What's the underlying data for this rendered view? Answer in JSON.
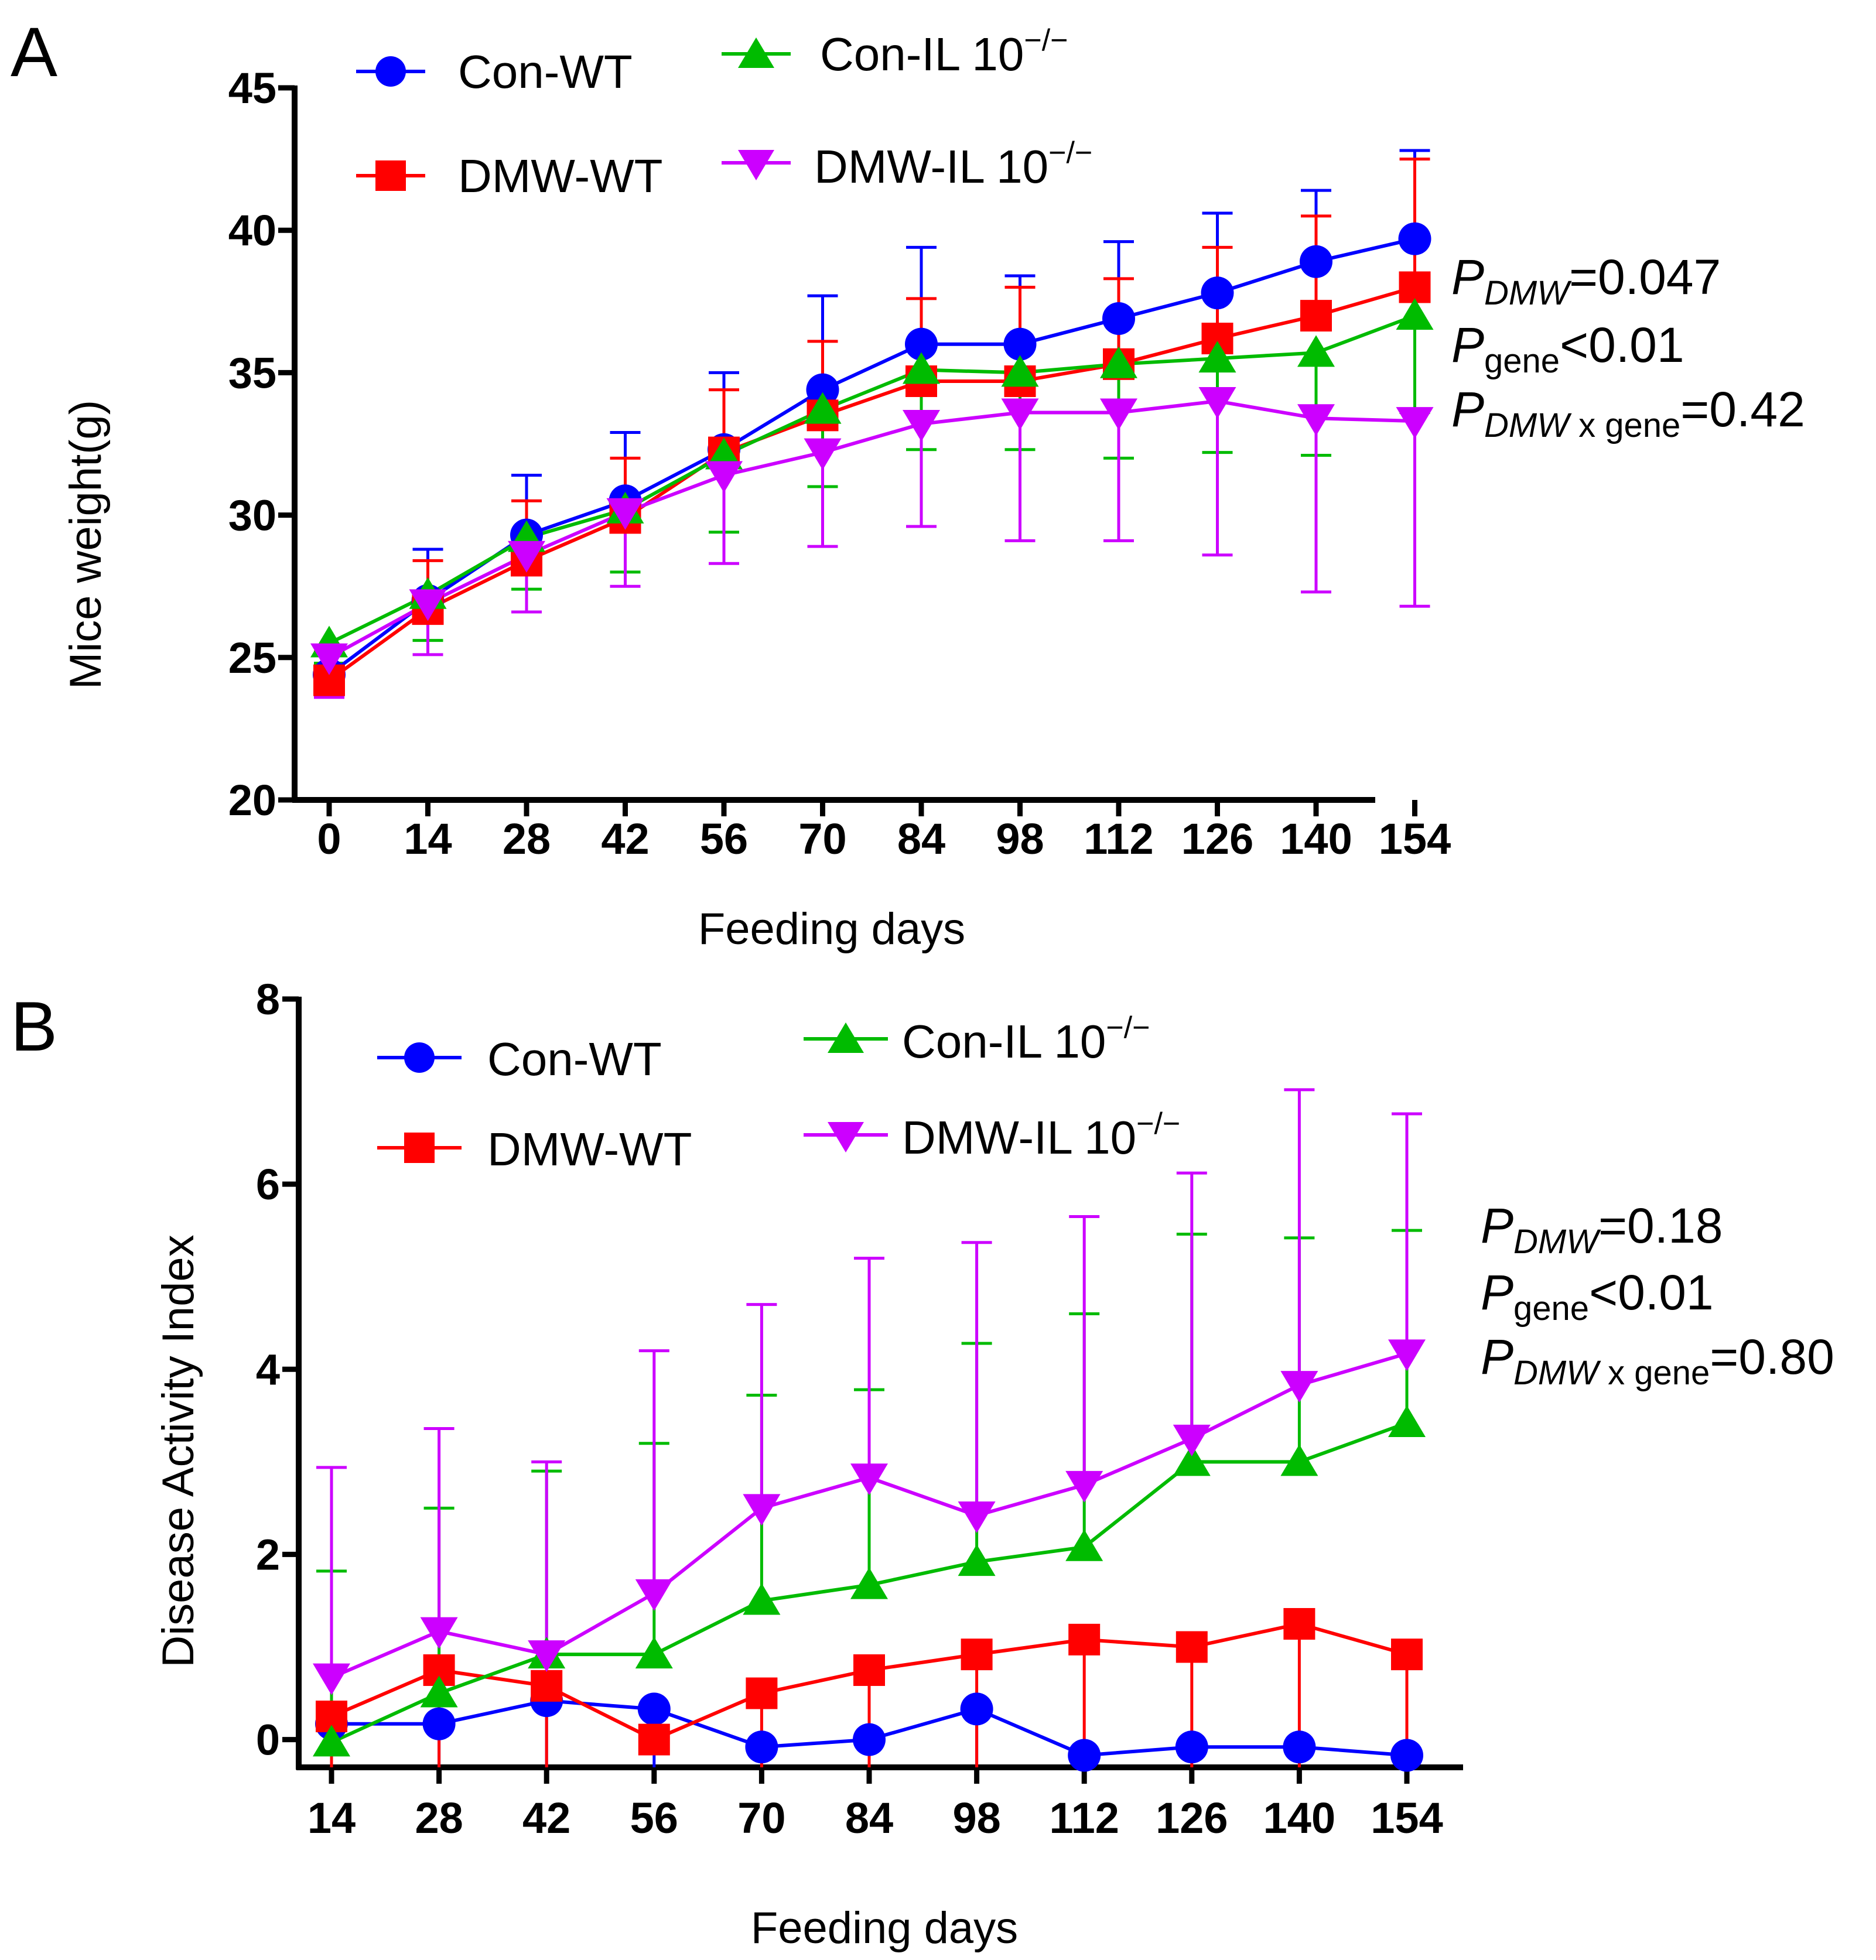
{
  "chart_data": [
    {
      "panel": "A",
      "type": "line",
      "xlabel": "Feeding days",
      "ylabel": "Mice weight(g)",
      "ylim": [
        20,
        45
      ],
      "yticks": [
        "20",
        "25",
        "30",
        "35",
        "40",
        "45"
      ],
      "categories": [
        "0",
        "14",
        "28",
        "42",
        "56",
        "70",
        "84",
        "98",
        "112",
        "126",
        "140",
        "154"
      ],
      "legend": {
        "con_wt": "Con-WT",
        "dmw_wt": "DMW-WT",
        "con_il": "Con-IL 10",
        "dmw_il": "DMW-IL 10",
        "superscript": "−/−"
      },
      "series": [
        {
          "name": "Con-WT",
          "color": "#0000ff",
          "marker": "circle",
          "values": [
            24.4,
            27.0,
            29.3,
            30.5,
            32.3,
            34.4,
            36.0,
            36.0,
            36.9,
            37.8,
            38.9,
            39.7
          ],
          "err_high": [
            25.4,
            28.8,
            31.4,
            32.9,
            35.0,
            37.7,
            39.4,
            38.4,
            39.6,
            40.6,
            41.4,
            42.8
          ],
          "err_low": null
        },
        {
          "name": "DMW-WT",
          "color": "#ff0000",
          "marker": "square",
          "values": [
            24.2,
            26.7,
            28.4,
            29.9,
            32.2,
            33.5,
            34.7,
            34.7,
            35.3,
            36.2,
            37.0,
            38.0
          ],
          "err_high": [
            25.2,
            28.4,
            30.5,
            32.0,
            34.4,
            36.1,
            37.6,
            38.0,
            38.3,
            39.4,
            40.5,
            42.5
          ],
          "err_low": null
        },
        {
          "name": "Con-IL 10−/−",
          "color": "#00bb00",
          "marker": "triangle-up",
          "values": [
            25.5,
            27.2,
            29.2,
            30.2,
            32.1,
            33.7,
            35.1,
            35.0,
            35.3,
            35.5,
            35.7,
            37.0
          ],
          "err_high": null,
          "err_low": [
            24.8,
            25.6,
            27.4,
            28.0,
            29.4,
            31.0,
            32.3,
            32.3,
            32.0,
            32.2,
            32.1,
            33.6
          ]
        },
        {
          "name": "DMW-IL 10−/−",
          "color": "#cc00ff",
          "marker": "triangle-down",
          "values": [
            25.0,
            26.9,
            28.6,
            30.1,
            31.4,
            32.2,
            33.2,
            33.6,
            33.6,
            34.0,
            33.4,
            33.3
          ],
          "err_high": null,
          "err_low": [
            23.6,
            25.1,
            26.6,
            27.5,
            28.3,
            28.9,
            29.6,
            29.1,
            29.1,
            28.6,
            27.3,
            26.8
          ]
        }
      ],
      "stats": [
        {
          "p": "P",
          "sub": "DMW",
          "value": "=0.047"
        },
        {
          "p": "P",
          "sub": "gene",
          "value": "<0.01"
        },
        {
          "p": "P",
          "sub": "DMW",
          "sub2": " x gene",
          "value": "=0.42"
        }
      ]
    },
    {
      "panel": "B",
      "type": "line",
      "xlabel": "Feeding days",
      "ylabel": "Disease Activity Index",
      "ylim": [
        -0.3,
        8
      ],
      "yticks": [
        "0",
        "2",
        "4",
        "6",
        "8"
      ],
      "categories": [
        "14",
        "28",
        "42",
        "56",
        "70",
        "84",
        "98",
        "112",
        "126",
        "140",
        "154"
      ],
      "legend": {
        "con_wt": "Con-WT",
        "dmw_wt": "DMW-WT",
        "con_il": "Con-IL 10",
        "dmw_il": "DMW-IL 10",
        "superscript": "−/−"
      },
      "series": [
        {
          "name": "Con-WT",
          "color": "#0000ff",
          "marker": "circle",
          "values": [
            0.17,
            0.17,
            0.42,
            0.33,
            -0.08,
            0.0,
            0.33,
            -0.17,
            -0.08,
            -0.08,
            -0.17
          ],
          "err_high": null,
          "err_low": [
            -0.3,
            -0.3,
            -0.3,
            -0.3,
            null,
            null,
            -0.3,
            null,
            null,
            null,
            null
          ]
        },
        {
          "name": "DMW-WT",
          "color": "#ff0000",
          "marker": "square",
          "values": [
            0.25,
            0.75,
            0.58,
            0.0,
            0.5,
            0.75,
            0.92,
            1.08,
            1.0,
            1.25,
            0.92
          ],
          "err_high": null,
          "err_low": [
            -0.3,
            -0.3,
            -0.3,
            null,
            -0.3,
            -0.3,
            -0.3,
            -0.3,
            -0.3,
            -0.3,
            -0.3
          ]
        },
        {
          "name": "Con-IL 10−/−",
          "color": "#00bb00",
          "marker": "triangle-up",
          "values": [
            -0.03,
            0.5,
            0.92,
            0.92,
            1.5,
            1.67,
            1.92,
            2.08,
            3.0,
            3.0,
            3.42
          ],
          "err_high": [
            1.82,
            2.5,
            2.9,
            3.2,
            3.72,
            3.78,
            4.28,
            4.6,
            5.46,
            5.42,
            5.5
          ],
          "err_low": null
        },
        {
          "name": "DMW-IL 10−/−",
          "color": "#cc00ff",
          "marker": "triangle-down",
          "values": [
            0.67,
            1.17,
            0.92,
            1.58,
            2.5,
            2.83,
            2.42,
            2.75,
            3.25,
            3.83,
            4.17
          ],
          "err_high": [
            2.94,
            3.36,
            3.0,
            4.2,
            4.7,
            5.2,
            5.37,
            5.65,
            6.12,
            7.02,
            6.76
          ],
          "err_low": null
        }
      ],
      "stats": [
        {
          "p": "P",
          "sub": "DMW",
          "value": "=0.18"
        },
        {
          "p": "P",
          "sub": "gene",
          "value": "<0.01"
        },
        {
          "p": "P",
          "sub": "DMW",
          "sub2": " x gene",
          "value": "=0.80"
        }
      ]
    }
  ]
}
